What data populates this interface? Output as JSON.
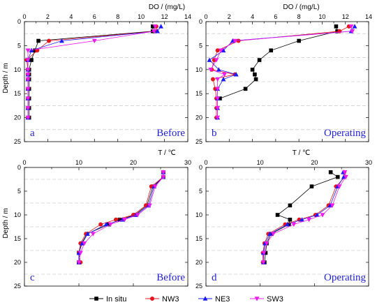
{
  "figure": {
    "do_axis_title": "DO / (mg/L)",
    "t_axis_title": "T / ℃",
    "depth_axis_title": "Depth / m"
  },
  "colors": {
    "In situ": "#000000",
    "NW3": "#e8141c",
    "NE3": "#1a1aff",
    "SW3": "#ee1aee",
    "panel_text": "#1f1fd6"
  },
  "legend": {
    "items": [
      {
        "name": "In situ",
        "marker": "square"
      },
      {
        "name": "NW3",
        "marker": "circle"
      },
      {
        "name": "NE3",
        "marker": "triangle-up"
      },
      {
        "name": "SW3",
        "marker": "triangle-down"
      }
    ],
    "placement": "bottom-center"
  },
  "chart_data": [
    {
      "type": "line",
      "panel_letter": "a",
      "phase_label": "Before",
      "xlabel": "DO / (mg/L)",
      "ylabel": "Depth / m",
      "xlim": [
        0,
        14
      ],
      "ylim": [
        25,
        0
      ],
      "x_ticks": [
        0,
        2,
        4,
        6,
        8,
        10,
        12,
        14
      ],
      "y_ticks": [
        0,
        5,
        10,
        15,
        20,
        25
      ],
      "grid": "horizontal dashed",
      "series": [
        {
          "name": "In situ",
          "points": [
            [
              11.0,
              1
            ],
            [
              11.0,
              2
            ],
            [
              1.2,
              4
            ],
            [
              0.9,
              6
            ],
            [
              0.6,
              8
            ],
            [
              0.4,
              10
            ],
            [
              0.4,
              11
            ],
            [
              0.4,
              12
            ],
            [
              0.4,
              14
            ],
            [
              0.4,
              16
            ],
            [
              0.4,
              18
            ],
            [
              0.4,
              20
            ]
          ]
        },
        {
          "name": "NW3",
          "points": [
            [
              11.3,
              1
            ],
            [
              11.3,
              2
            ],
            [
              2.1,
              4
            ],
            [
              1.1,
              6
            ],
            [
              0.2,
              8
            ],
            [
              0.3,
              10
            ],
            [
              0.3,
              11
            ],
            [
              0.3,
              12
            ],
            [
              0.3,
              14
            ],
            [
              0.3,
              16
            ],
            [
              0.3,
              18
            ],
            [
              0.3,
              20
            ]
          ]
        },
        {
          "name": "NE3",
          "points": [
            [
              11.7,
              1
            ],
            [
              11.4,
              2
            ],
            [
              3.2,
              4
            ],
            [
              0.6,
              6
            ],
            [
              0.3,
              8
            ],
            [
              0.3,
              10
            ],
            [
              0.3,
              11
            ],
            [
              0.3,
              12
            ],
            [
              0.3,
              14
            ],
            [
              0.3,
              16
            ],
            [
              0.3,
              18
            ],
            [
              0.3,
              20
            ]
          ]
        },
        {
          "name": "SW3",
          "points": [
            [
              11.2,
              1
            ],
            [
              11.1,
              2
            ],
            [
              6.0,
              4
            ],
            [
              0.3,
              6
            ],
            [
              0.3,
              8
            ],
            [
              0.3,
              10
            ],
            [
              0.3,
              11
            ],
            [
              0.3,
              12
            ],
            [
              0.3,
              14
            ],
            [
              0.3,
              16
            ],
            [
              0.3,
              18
            ],
            [
              0.3,
              20
            ]
          ]
        }
      ]
    },
    {
      "type": "line",
      "panel_letter": "b",
      "phase_label": "Operating",
      "xlabel": "DO / (mg/L)",
      "ylabel": "Depth / m",
      "xlim": [
        0,
        14
      ],
      "ylim": [
        25,
        0
      ],
      "x_ticks": [
        0,
        2,
        4,
        6,
        8,
        10,
        12,
        14
      ],
      "y_ticks": [
        0,
        5,
        10,
        15,
        20,
        25
      ],
      "grid": "horizontal dashed",
      "series": [
        {
          "name": "In situ",
          "points": [
            [
              11.2,
              1
            ],
            [
              11.3,
              2
            ],
            [
              8.0,
              4
            ],
            [
              5.6,
              6
            ],
            [
              4.6,
              8
            ],
            [
              4.0,
              10
            ],
            [
              4.2,
              11
            ],
            [
              4.3,
              12
            ],
            [
              3.4,
              14
            ],
            [
              1.2,
              16
            ]
          ]
        },
        {
          "name": "NW3",
          "points": [
            [
              12.3,
              1
            ],
            [
              11.5,
              2
            ],
            [
              2.8,
              4
            ],
            [
              1.0,
              6
            ],
            [
              0.7,
              8
            ],
            [
              0.5,
              10
            ],
            [
              2.5,
              11
            ],
            [
              0.6,
              12
            ],
            [
              0.8,
              14
            ],
            [
              0.9,
              16
            ],
            [
              0.9,
              18
            ],
            [
              0.9,
              20
            ]
          ]
        },
        {
          "name": "NE3",
          "points": [
            [
              12.8,
              1
            ],
            [
              12.5,
              2
            ],
            [
              2.3,
              4
            ],
            [
              1.5,
              6
            ],
            [
              0.3,
              8
            ],
            [
              1.1,
              10
            ],
            [
              2.6,
              11
            ],
            [
              1.5,
              12
            ],
            [
              1.0,
              14
            ],
            [
              1.0,
              16
            ],
            [
              1.0,
              18
            ],
            [
              1.0,
              20
            ]
          ]
        },
        {
          "name": "SW3",
          "points": [
            [
              12.5,
              1
            ],
            [
              12.6,
              2
            ],
            [
              2.5,
              4
            ],
            [
              1.3,
              6
            ],
            [
              0.9,
              8
            ],
            [
              0.4,
              10
            ],
            [
              1.6,
              11
            ],
            [
              1.0,
              12
            ],
            [
              1.0,
              14
            ],
            [
              1.0,
              16
            ],
            [
              1.0,
              18
            ],
            [
              1.0,
              20
            ]
          ]
        }
      ]
    },
    {
      "type": "line",
      "panel_letter": "c",
      "phase_label": "Before",
      "xlabel": "T / ℃",
      "ylabel": "Depth / m",
      "xlim": [
        0,
        30
      ],
      "ylim": [
        25,
        0
      ],
      "x_ticks": [
        0,
        10,
        20,
        30
      ],
      "y_ticks": [
        0,
        5,
        10,
        15,
        20,
        25
      ],
      "grid": "horizontal dashed",
      "series": [
        {
          "name": "In situ",
          "points": [
            [
              25.5,
              1
            ],
            [
              25.5,
              2
            ],
            [
              23.6,
              4
            ],
            [
              22.5,
              8
            ],
            [
              20.3,
              10
            ],
            [
              17.5,
              11
            ],
            [
              15.5,
              12
            ],
            [
              11.5,
              14
            ],
            [
              10.5,
              16
            ],
            [
              10.0,
              18
            ],
            [
              10.0,
              20
            ]
          ]
        },
        {
          "name": "NW3",
          "points": [
            [
              25.5,
              1
            ],
            [
              25.5,
              2
            ],
            [
              23.3,
              4
            ],
            [
              22.3,
              8
            ],
            [
              20.0,
              10
            ],
            [
              16.8,
              11
            ],
            [
              14.0,
              12
            ],
            [
              11.3,
              14
            ],
            [
              10.3,
              16
            ],
            [
              10.0,
              18
            ],
            [
              10.3,
              20
            ]
          ]
        },
        {
          "name": "NE3",
          "points": [
            [
              25.5,
              1
            ],
            [
              25.5,
              2
            ],
            [
              23.8,
              4
            ],
            [
              22.8,
              8
            ],
            [
              20.5,
              10
            ],
            [
              18.0,
              11
            ],
            [
              15.0,
              12
            ],
            [
              11.6,
              14
            ],
            [
              10.6,
              16
            ],
            [
              10.0,
              18
            ],
            [
              10.0,
              20
            ]
          ]
        },
        {
          "name": "SW3",
          "points": [
            [
              25.5,
              1
            ],
            [
              25.5,
              2
            ],
            [
              24.0,
              4
            ],
            [
              23.0,
              8
            ],
            [
              20.8,
              10
            ],
            [
              18.4,
              11
            ],
            [
              15.8,
              12
            ],
            [
              12.6,
              14
            ],
            [
              11.0,
              16
            ],
            [
              10.3,
              18
            ],
            [
              10.0,
              20
            ]
          ]
        }
      ]
    },
    {
      "type": "line",
      "panel_letter": "d",
      "phase_label": "Operating",
      "xlabel": "T / ℃",
      "ylabel": "Depth / m",
      "xlim": [
        0,
        30
      ],
      "ylim": [
        25,
        0
      ],
      "x_ticks": [
        0,
        10,
        20,
        30
      ],
      "y_ticks": [
        0,
        5,
        10,
        15,
        20,
        25
      ],
      "grid": "horizontal dashed",
      "series": [
        {
          "name": "In situ",
          "points": [
            [
              23.0,
              1
            ],
            [
              24.3,
              2
            ],
            [
              19.5,
              4
            ],
            [
              15.5,
              8
            ],
            [
              13.2,
              10
            ],
            [
              15.5,
              11
            ],
            [
              15.3,
              12
            ],
            [
              12.0,
              14
            ],
            [
              11.2,
              16
            ],
            [
              11.0,
              18
            ],
            [
              10.8,
              20
            ]
          ]
        },
        {
          "name": "NW3",
          "points": [
            [
              25.5,
              1
            ],
            [
              25.6,
              2
            ],
            [
              24.0,
              4
            ],
            [
              22.6,
              8
            ],
            [
              20.2,
              10
            ],
            [
              17.2,
              11
            ],
            [
              14.6,
              12
            ],
            [
              11.5,
              14
            ],
            [
              10.8,
              16
            ],
            [
              10.5,
              18
            ],
            [
              10.5,
              20
            ]
          ]
        },
        {
          "name": "NE3",
          "points": [
            [
              25.3,
              1
            ],
            [
              25.4,
              2
            ],
            [
              24.3,
              4
            ],
            [
              22.9,
              8
            ],
            [
              20.5,
              10
            ],
            [
              17.7,
              11
            ],
            [
              15.0,
              12
            ],
            [
              11.8,
              14
            ],
            [
              10.9,
              16
            ],
            [
              10.6,
              18
            ],
            [
              10.6,
              20
            ]
          ]
        },
        {
          "name": "SW3",
          "points": [
            [
              25.6,
              1
            ],
            [
              25.8,
              2
            ],
            [
              24.6,
              4
            ],
            [
              23.3,
              8
            ],
            [
              21.5,
              10
            ],
            [
              19.0,
              11
            ],
            [
              16.2,
              12
            ],
            [
              12.4,
              14
            ],
            [
              11.2,
              16
            ],
            [
              10.7,
              18
            ],
            [
              10.6,
              20
            ]
          ]
        }
      ]
    }
  ]
}
